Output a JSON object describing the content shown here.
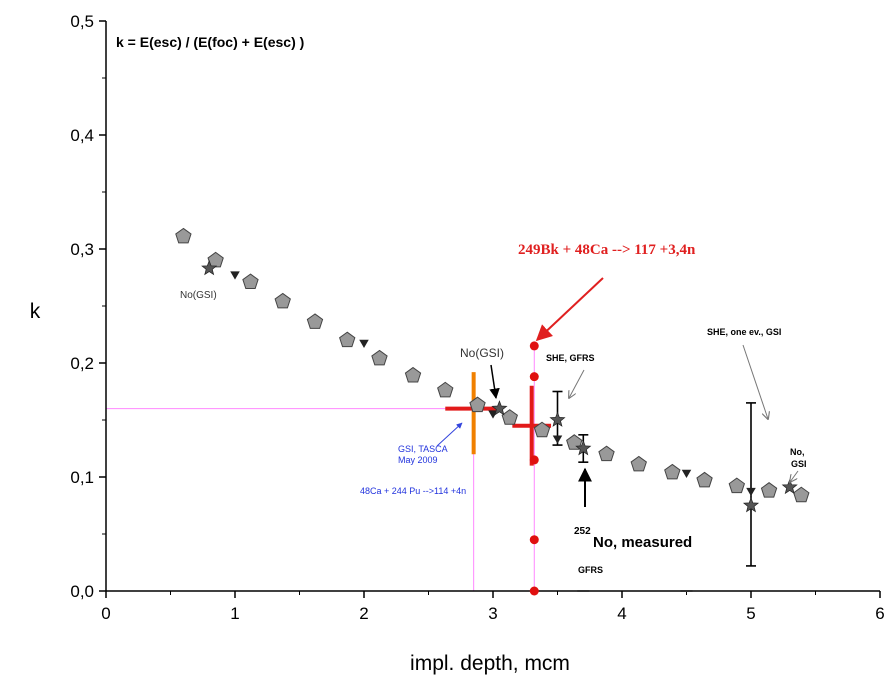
{
  "chart_data": {
    "type": "scatter",
    "title": "",
    "xlabel": "impl. depth, mcm",
    "ylabel": "k",
    "xlim": [
      0,
      6
    ],
    "ylim": [
      0,
      0.5
    ],
    "x_ticks": [
      "0",
      "1",
      "2",
      "3",
      "4",
      "5",
      "6"
    ],
    "y_ticks": [
      "0,0",
      "0,1",
      "0,2",
      "0,3",
      "0,4",
      "0,5"
    ],
    "grid": false,
    "formula": "k = E(esc) / (E(foc) + E(esc) )",
    "series": [
      {
        "marker": "pentagon",
        "color": "#999999",
        "x": [
          0.6,
          0.85,
          1.12,
          1.37,
          1.62,
          1.87,
          2.12,
          2.38,
          2.63,
          2.88,
          3.13,
          3.38,
          3.63,
          3.88,
          4.13,
          4.39,
          4.64,
          4.89,
          5.14,
          5.39
        ],
        "y": [
          0.311,
          0.29,
          0.271,
          0.254,
          0.236,
          0.22,
          0.204,
          0.189,
          0.176,
          0.163,
          0.152,
          0.141,
          0.13,
          0.12,
          0.111,
          0.104,
          0.097,
          0.092,
          0.088,
          0.084
        ]
      },
      {
        "marker": "triangle-down",
        "color": "#222222",
        "x": [
          1.0,
          2.0,
          3.0,
          3.5,
          4.5,
          5.0
        ],
        "y": [
          0.278,
          0.218,
          0.156,
          0.134,
          0.104,
          0.088
        ]
      },
      {
        "marker": "star",
        "color": "#555555",
        "x": [
          0.8,
          3.05,
          3.5,
          3.7,
          5.0,
          5.3
        ],
        "y": [
          0.283,
          0.16,
          0.15,
          0.125,
          0.075,
          0.091
        ],
        "yerr_low": [
          0,
          0,
          0.022,
          0.012,
          0.053,
          0
        ],
        "yerr_high": [
          0,
          0,
          0.025,
          0.012,
          0.09,
          0
        ]
      },
      {
        "marker": "circle",
        "color": "#e01010",
        "x": [
          3.32,
          3.32,
          3.32,
          3.32,
          3.32
        ],
        "y": [
          0.215,
          0.188,
          0.115,
          0.045,
          0.0
        ]
      },
      {
        "marker": "dash",
        "color": "#333333",
        "x": [
          3.7,
          4.5
        ],
        "y": [
          0.0,
          0.0
        ]
      }
    ],
    "crosses": [
      {
        "x": 2.85,
        "y": 0.16,
        "x_half": 0.22,
        "y_low": 0.12,
        "y_high": 0.192,
        "horizontal_color": "#e21a1a",
        "vertical_color": "#f08000"
      },
      {
        "x": 3.3,
        "y": 0.145,
        "x_half": 0.15,
        "y_low": 0.11,
        "y_high": 0.18,
        "horizontal_color": "#e21a1a",
        "vertical_color": "#e21a1a"
      }
    ],
    "guide_lines": [
      {
        "y": 0.16,
        "x_end": 2.85,
        "color": "#ff88ff"
      },
      {
        "x": 2.85,
        "y_end": 0.16,
        "color": "#ff88ff"
      },
      {
        "x": 3.32,
        "y_end": 0.215,
        "color": "#ff88ff"
      }
    ],
    "annotations": {
      "no_gsi_left": "No(GSI)",
      "no_gsi_mid": "No(GSI)",
      "she_gfrs": "SHE, GFRS",
      "she_one_ev": "SHE, one ev., GSI",
      "no_gsi_right_1": "No,",
      "no_gsi_right_2": "GSI",
      "gsi_tasca_1": "GSI, TASCA",
      "gsi_tasca_2": "May 2009",
      "reaction_114": "48Ca + 244 Pu -->114 +4n",
      "reaction_117": "249Bk + 48Ca --> 117 +3,4n",
      "no_measured_sup": "252",
      "no_measured": "No, measured",
      "gfrs": "GFRS"
    }
  }
}
